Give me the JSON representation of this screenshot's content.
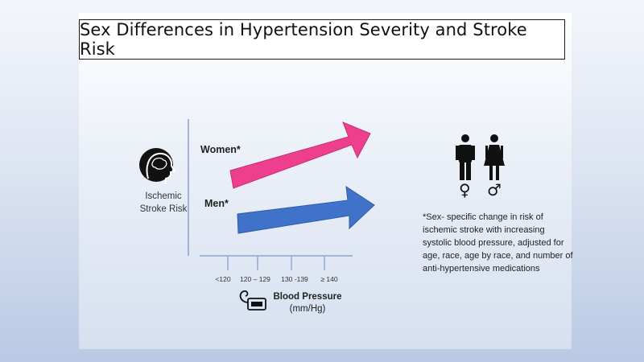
{
  "title": "Sex Differences in Hypertension Severity and Stroke Risk",
  "y_axis": {
    "line1": "Ischemic",
    "line2": "Stroke Risk",
    "icon": "brain-head-icon"
  },
  "series": {
    "women": {
      "label": "Women*",
      "color": "#ee3f8f"
    },
    "men": {
      "label": "Men*",
      "color": "#3f72c8"
    }
  },
  "x_axis": {
    "ticks": [
      "<120",
      "120 – 129",
      "130 -139",
      "≥ 140"
    ],
    "label_line1": "Blood Pressure",
    "label_line2": "(mm/Hg)",
    "icon": "blood-pressure-cuff-icon"
  },
  "symbols": {
    "female": "♀",
    "male": "♂"
  },
  "note": "*Sex- specific change in risk of ischemic stroke with increasing systolic blood pressure, adjusted for age, race, age by race, and number of anti-hypertensive medications"
}
